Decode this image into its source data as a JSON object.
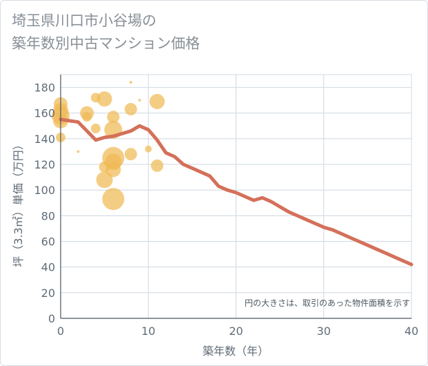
{
  "title_lines": [
    "埼玉県川口市小谷場の",
    "築年数別中古マンション価格"
  ],
  "colors": {
    "line": "#d4705a",
    "bubble": "#f0ba55",
    "grid": "#cfd8e0",
    "axis": "#4a5560",
    "text": "#5f6b76"
  },
  "chart_data": {
    "type": "scatter+line",
    "xlabel": "築年数（年）",
    "ylabel": "坪（3.3㎡）単価（万円）",
    "xlim": [
      0,
      40
    ],
    "ylim": [
      0,
      190
    ],
    "xticks": [
      0,
      10,
      20,
      30,
      40
    ],
    "yticks": [
      0,
      20,
      40,
      60,
      80,
      100,
      120,
      140,
      160,
      180
    ],
    "note": "円の大きさは、取引のあった物件面積を示す",
    "line": {
      "name": "average",
      "x": [
        0,
        1,
        2,
        3,
        4,
        5,
        6,
        7,
        8,
        9,
        10,
        11,
        12,
        13,
        14,
        15,
        16,
        17,
        18,
        19,
        20,
        21,
        22,
        23,
        24,
        25,
        26,
        27,
        28,
        29,
        30,
        31,
        32,
        33,
        34,
        35,
        36,
        37,
        38,
        39,
        40
      ],
      "y": [
        155,
        154,
        153,
        146,
        139,
        141,
        142,
        144,
        146,
        150,
        147,
        139,
        129,
        126,
        120,
        117,
        114,
        111,
        103,
        100,
        98,
        95,
        92,
        94,
        91,
        87,
        83,
        80,
        77,
        74,
        71,
        69,
        66,
        63,
        60,
        57,
        54,
        51,
        48,
        45,
        42
      ]
    },
    "bubbles": [
      {
        "x": 0,
        "y": 167,
        "size": 10
      },
      {
        "x": 0,
        "y": 162,
        "size": 11
      },
      {
        "x": 0,
        "y": 158,
        "size": 13
      },
      {
        "x": 0,
        "y": 154,
        "size": 11
      },
      {
        "x": 0,
        "y": 141,
        "size": 7
      },
      {
        "x": 2,
        "y": 130,
        "size": 2
      },
      {
        "x": 3,
        "y": 160,
        "size": 10
      },
      {
        "x": 3,
        "y": 157,
        "size": 7
      },
      {
        "x": 4,
        "y": 172,
        "size": 7
      },
      {
        "x": 4,
        "y": 148,
        "size": 7
      },
      {
        "x": 5,
        "y": 171,
        "size": 11
      },
      {
        "x": 5,
        "y": 118,
        "size": 8
      },
      {
        "x": 5,
        "y": 108,
        "size": 12
      },
      {
        "x": 6,
        "y": 157,
        "size": 9
      },
      {
        "x": 6,
        "y": 147,
        "size": 13
      },
      {
        "x": 6,
        "y": 125,
        "size": 16
      },
      {
        "x": 6,
        "y": 122,
        "size": 12
      },
      {
        "x": 6,
        "y": 116,
        "size": 11
      },
      {
        "x": 6,
        "y": 93,
        "size": 16
      },
      {
        "x": 8,
        "y": 184,
        "size": 2
      },
      {
        "x": 8,
        "y": 163,
        "size": 9
      },
      {
        "x": 8,
        "y": 128,
        "size": 9
      },
      {
        "x": 9,
        "y": 170,
        "size": 2
      },
      {
        "x": 10,
        "y": 132,
        "size": 5
      },
      {
        "x": 11,
        "y": 169,
        "size": 11
      },
      {
        "x": 11,
        "y": 119,
        "size": 9
      }
    ]
  }
}
